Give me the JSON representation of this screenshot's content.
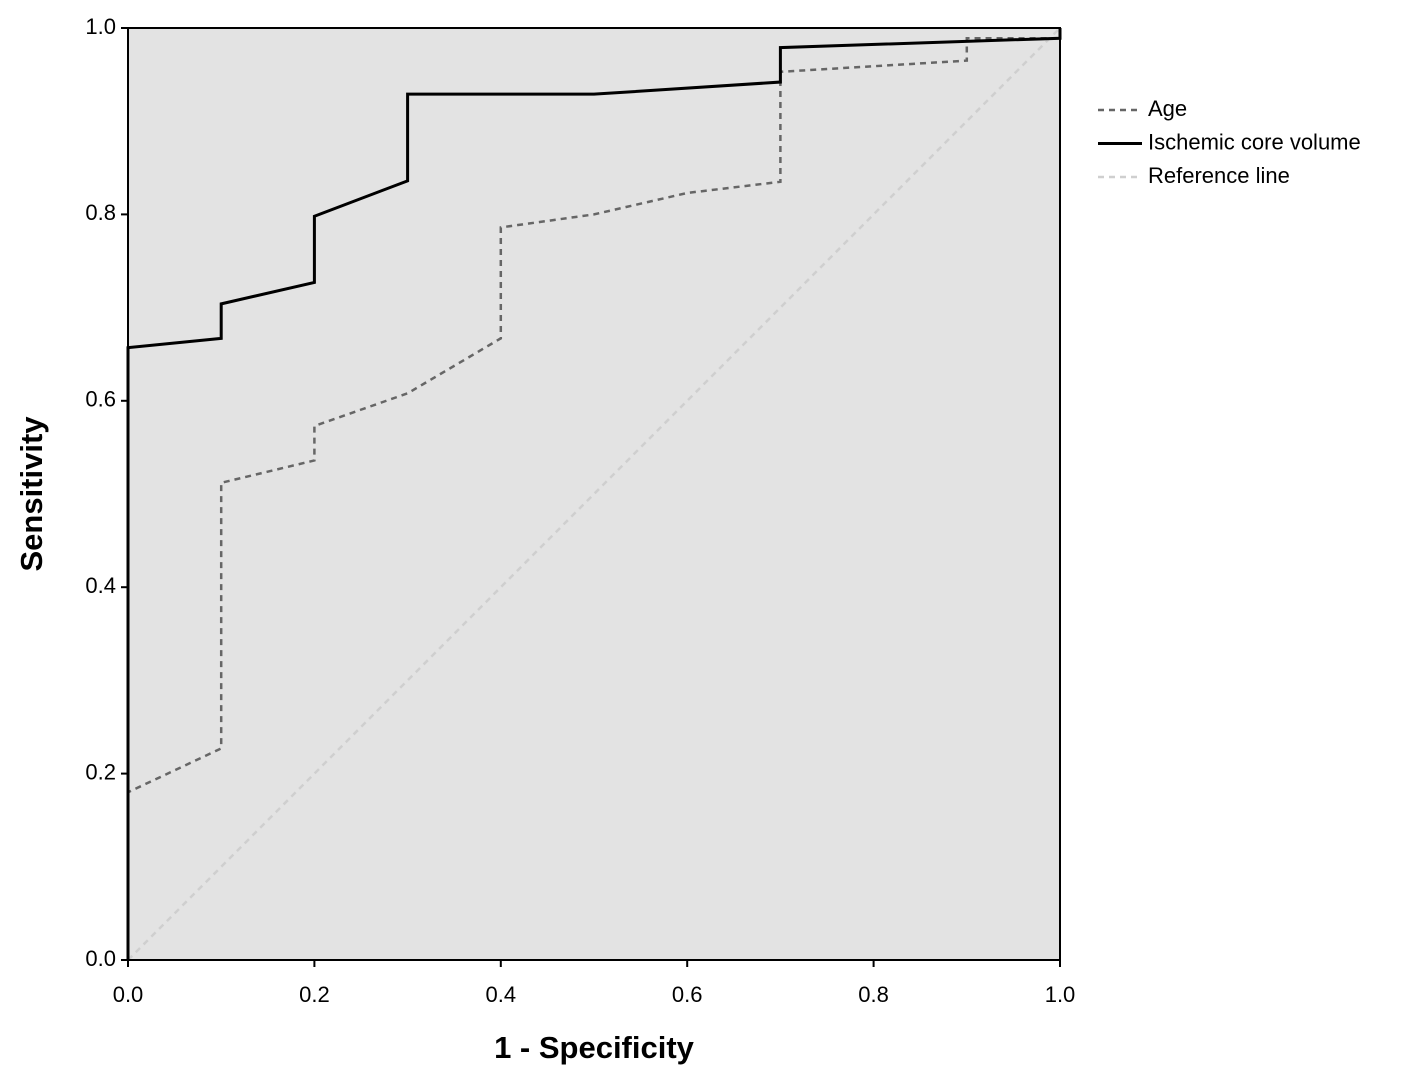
{
  "chart_data": {
    "type": "line",
    "xlabel": "1 - Specificity",
    "ylabel": "Sensitivity",
    "xlim": [
      0,
      1
    ],
    "ylim": [
      0,
      1
    ],
    "xticks": [
      {
        "value": 0,
        "label": "0.0"
      },
      0.2,
      0.4,
      0.6,
      0.8,
      {
        "value": 1,
        "label": "1.0"
      }
    ],
    "yticks": [
      {
        "value": 0,
        "label": "0.0"
      },
      0.2,
      0.4,
      0.6,
      0.8,
      {
        "value": 1,
        "label": "1.0"
      }
    ],
    "background": "#e3e3e3",
    "legend": "right",
    "series": [
      {
        "name": "Age",
        "color": "#666666",
        "dash": "dashed",
        "x": [
          0,
          0,
          0.1,
          0.1,
          0.2,
          0.2,
          0.3,
          0.4,
          0.4,
          0.5,
          0.6,
          0.7,
          0.7,
          0.9,
          0.9,
          1,
          1
        ],
        "values": [
          0,
          0.18,
          0.227,
          0.512,
          0.536,
          0.573,
          0.608,
          0.667,
          0.786,
          0.8,
          0.823,
          0.835,
          0.953,
          0.965,
          0.989,
          0.989,
          1
        ]
      },
      {
        "name": "Ischemic core volume",
        "color": "#000000",
        "dash": "solid",
        "x": [
          0,
          0,
          0.1,
          0.1,
          0.2,
          0.2,
          0.3,
          0.3,
          0.5,
          0.7,
          0.7,
          1,
          1
        ],
        "values": [
          0,
          0.657,
          0.667,
          0.704,
          0.727,
          0.798,
          0.836,
          0.929,
          0.929,
          0.942,
          0.979,
          0.989,
          1
        ]
      },
      {
        "name": "Reference line",
        "color": "#cfcfcf",
        "dash": "dashed",
        "x": [
          0,
          1
        ],
        "values": [
          0,
          1
        ]
      }
    ]
  }
}
